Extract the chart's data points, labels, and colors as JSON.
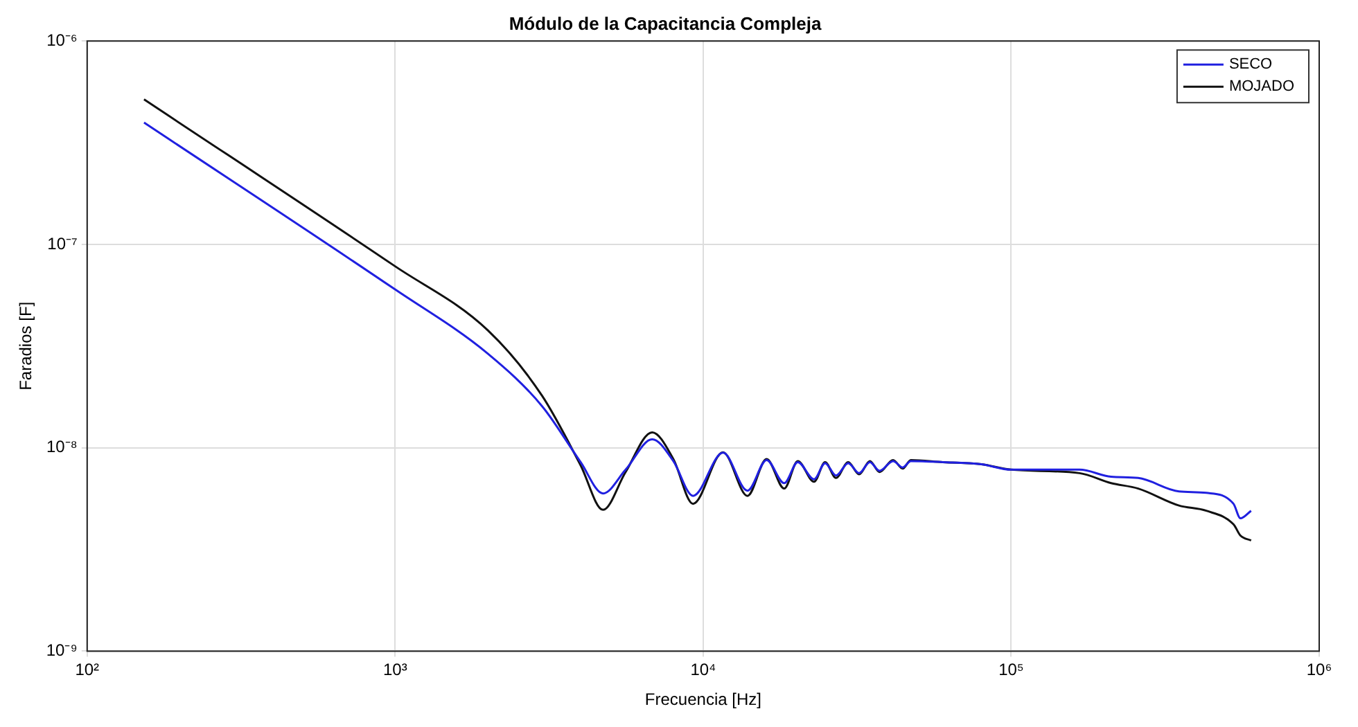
{
  "chart_data": {
    "type": "line",
    "title": "Módulo de la Capacitancia Compleja",
    "xlabel": "Frecuencia [Hz]",
    "ylabel": "Faradios [F]",
    "log": "xy",
    "grid": true,
    "legend": "top right",
    "line_style": "solid",
    "marker": "none",
    "xlim": [
      100,
      1000000
    ],
    "xticks": [
      {
        "value": 100,
        "label": "10²"
      },
      {
        "value": 1000,
        "label": "10³"
      },
      {
        "value": 10000,
        "label": "10⁴"
      },
      {
        "value": 100000,
        "label": "10⁵"
      },
      {
        "value": 1000000,
        "label": "10⁶"
      }
    ],
    "ylim": [
      1e-09,
      1e-06
    ],
    "yticks": [
      {
        "value": 1e-09,
        "label": "10⁻⁹"
      },
      {
        "value": 1e-08,
        "label": "10⁻⁸"
      },
      {
        "value": 1e-07,
        "label": "10⁻⁷"
      },
      {
        "value": 1e-06,
        "label": "10⁻⁶"
      }
    ],
    "x": [
      153,
      1000,
      2000,
      3000,
      4000,
      4730,
      5600,
      6830,
      8000,
      9270,
      11600,
      13930,
      16070,
      18330,
      20280,
      22910,
      24880,
      26990,
      29580,
      32080,
      34780,
      37350,
      41360,
      44440,
      47230,
      60000,
      80000,
      100000,
      166700,
      211000,
      258400,
      350500,
      430000,
      527000,
      555000,
      601000
    ],
    "series": [
      {
        "name": "SECO",
        "color": "#2020e0",
        "values": [
          3.97e-07,
          6e-08,
          2.9e-08,
          1.6e-08,
          8.5e-09,
          5.96e-09,
          7.8e-09,
          1.1e-08,
          8.6e-09,
          5.8e-09,
          9.46e-09,
          6.15e-09,
          8.7e-09,
          6.7e-09,
          8.5e-09,
          7e-09,
          8.4e-09,
          7.3e-09,
          8.4e-09,
          7.5e-09,
          8.5e-09,
          7.7e-09,
          8.6e-09,
          8e-09,
          8.6e-09,
          8.5e-09,
          8.3e-09,
          7.8e-09,
          7.8e-09,
          7.2e-09,
          7.1e-09,
          6.1e-09,
          6e-09,
          5.3e-09,
          4.5e-09,
          4.9e-09
        ]
      },
      {
        "name": "MOJADO",
        "color": "#111111",
        "values": [
          5.16e-07,
          7.8e-08,
          3.78e-08,
          1.8e-08,
          8.2e-09,
          4.95e-09,
          7.6e-09,
          1.19e-08,
          8.8e-09,
          5.3e-09,
          9.5e-09,
          5.8e-09,
          8.8e-09,
          6.3e-09,
          8.6e-09,
          6.8e-09,
          8.5e-09,
          7.1e-09,
          8.5e-09,
          7.4e-09,
          8.6e-09,
          7.6e-09,
          8.7e-09,
          7.9e-09,
          8.7e-09,
          8.5e-09,
          8.3e-09,
          7.8e-09,
          7.5e-09,
          6.7e-09,
          6.3e-09,
          5.2e-09,
          4.9e-09,
          4.2e-09,
          3.7e-09,
          3.5e-09
        ]
      }
    ]
  }
}
